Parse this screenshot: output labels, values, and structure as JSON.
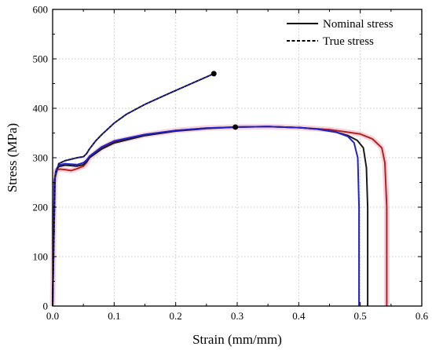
{
  "chart_data": {
    "type": "line",
    "title": "",
    "xlabel": "Strain (mm/mm)",
    "ylabel": "Stress (MPa)",
    "xlim": [
      0.0,
      0.6
    ],
    "ylim": [
      0,
      600
    ],
    "xticks": [
      0.0,
      0.1,
      0.2,
      0.3,
      0.4,
      0.5,
      0.6
    ],
    "xtick_labels": [
      "0.0",
      "0.1",
      "0.2",
      "0.3",
      "0.4",
      "0.5",
      "0.6"
    ],
    "yticks": [
      0,
      100,
      200,
      300,
      400,
      500,
      600
    ],
    "ytick_labels": [
      "0",
      "100",
      "200",
      "300",
      "400",
      "500",
      "600"
    ],
    "grid": true,
    "legend_position": "top-right",
    "legend": [
      {
        "label": "Nominal stress",
        "style": "solid"
      },
      {
        "label": "True stress",
        "style": "dashed"
      }
    ],
    "series": [
      {
        "style": "solid",
        "color": "#1a1a1a",
        "x": [
          0.0,
          0.003,
          0.005,
          0.01,
          0.02,
          0.03,
          0.04,
          0.05,
          0.055,
          0.06,
          0.08,
          0.1,
          0.15,
          0.2,
          0.25,
          0.3,
          0.35,
          0.4,
          0.43,
          0.46,
          0.48,
          0.495,
          0.505,
          0.51,
          0.512,
          0.512
        ],
        "y": [
          0,
          250,
          272,
          282,
          285,
          284,
          283,
          286,
          292,
          300,
          318,
          330,
          345,
          354,
          359,
          362,
          363,
          361,
          358,
          352,
          345,
          335,
          320,
          280,
          200,
          0
        ]
      },
      {
        "style": "solid",
        "color": "#b22222",
        "x": [
          0.0,
          0.003,
          0.006,
          0.012,
          0.02,
          0.03,
          0.04,
          0.05,
          0.055,
          0.06,
          0.08,
          0.1,
          0.15,
          0.2,
          0.25,
          0.3,
          0.35,
          0.4,
          0.45,
          0.5,
          0.52,
          0.535,
          0.54,
          0.543,
          0.543
        ],
        "y": [
          0,
          250,
          275,
          277,
          276,
          274,
          278,
          283,
          290,
          300,
          320,
          332,
          346,
          355,
          360,
          362,
          363,
          361,
          357,
          348,
          338,
          320,
          290,
          200,
          0
        ]
      },
      {
        "style": "solid",
        "color": "#2222cc",
        "x": [
          0.0,
          0.003,
          0.006,
          0.01,
          0.02,
          0.03,
          0.04,
          0.05,
          0.055,
          0.06,
          0.08,
          0.1,
          0.15,
          0.2,
          0.25,
          0.3,
          0.35,
          0.4,
          0.43,
          0.46,
          0.48,
          0.49,
          0.496,
          0.498,
          0.498
        ],
        "y": [
          0,
          255,
          276,
          285,
          288,
          287,
          286,
          290,
          295,
          303,
          322,
          334,
          347,
          355,
          360,
          362,
          363,
          361,
          358,
          352,
          343,
          330,
          300,
          200,
          0
        ]
      },
      {
        "style": "dashed",
        "color": "#1a1a1a",
        "x": [
          0.0,
          0.004,
          0.01,
          0.02,
          0.03,
          0.04,
          0.05,
          0.055,
          0.06,
          0.07,
          0.08,
          0.1,
          0.12,
          0.15,
          0.18,
          0.2,
          0.22,
          0.24,
          0.262
        ],
        "y": [
          0,
          260,
          288,
          294,
          297,
          300,
          302,
          308,
          318,
          334,
          347,
          370,
          388,
          408,
          425,
          436,
          447,
          458,
          470
        ]
      }
    ],
    "annotations": [
      {
        "type": "marker",
        "x": 0.262,
        "y": 470,
        "label": ""
      },
      {
        "type": "marker",
        "x": 0.297,
        "y": 362,
        "label": ""
      }
    ]
  },
  "colors": {
    "grid": "#c8c8c8",
    "nominal_black": "#1a1a1a",
    "nominal_red": "#b22222",
    "nominal_blue": "#2222cc",
    "red_band": "#f2b8c6",
    "marker": "#000000"
  }
}
